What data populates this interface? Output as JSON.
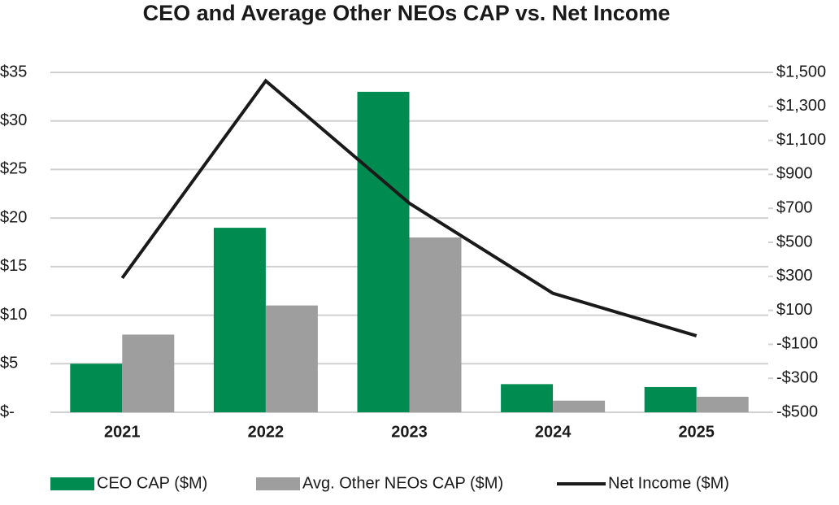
{
  "chart_data": {
    "type": "bar-line",
    "title": "CEO and Average Other NEOs CAP vs. Net Income",
    "categories": [
      "2021",
      "2022",
      "2023",
      "2024",
      "2025"
    ],
    "series": [
      {
        "name": "CEO CAP ($M)",
        "type": "bar",
        "color": "#008c50",
        "values": [
          5,
          19,
          33,
          2.9,
          2.6
        ]
      },
      {
        "name": "Avg. Other NEOs CAP ($M)",
        "type": "bar",
        "color": "#9d9e9d",
        "values": [
          8,
          11,
          18,
          1.2,
          1.6
        ]
      },
      {
        "name": "Net Income ($M)",
        "type": "line",
        "axis": "y2",
        "color": "#1a1a1a",
        "values": [
          290,
          1450,
          730,
          200,
          -50
        ]
      }
    ],
    "ylim": [
      0,
      35
    ],
    "yticks": [
      {
        "value": 0,
        "label": "$-"
      },
      {
        "value": 5,
        "label": "$5"
      },
      {
        "value": 10,
        "label": "$10"
      },
      {
        "value": 15,
        "label": "$15"
      },
      {
        "value": 20,
        "label": "$20"
      },
      {
        "value": 25,
        "label": "$25"
      },
      {
        "value": 30,
        "label": "$30"
      },
      {
        "value": 35,
        "label": "$35"
      }
    ],
    "y2lim": [
      -500,
      1500
    ],
    "y2ticks": [
      {
        "value": -500,
        "label": "-$500"
      },
      {
        "value": -300,
        "label": "-$300"
      },
      {
        "value": -100,
        "label": "-$100"
      },
      {
        "value": 100,
        "label": "$100"
      },
      {
        "value": 300,
        "label": "$300"
      },
      {
        "value": 500,
        "label": "$500"
      },
      {
        "value": 700,
        "label": "$700"
      },
      {
        "value": 900,
        "label": "$900"
      },
      {
        "value": 1100,
        "label": "$1,100"
      },
      {
        "value": 1300,
        "label": "$1,300"
      },
      {
        "value": 1500,
        "label": "$1,500"
      }
    ],
    "grid": true,
    "legend": "bottom"
  }
}
